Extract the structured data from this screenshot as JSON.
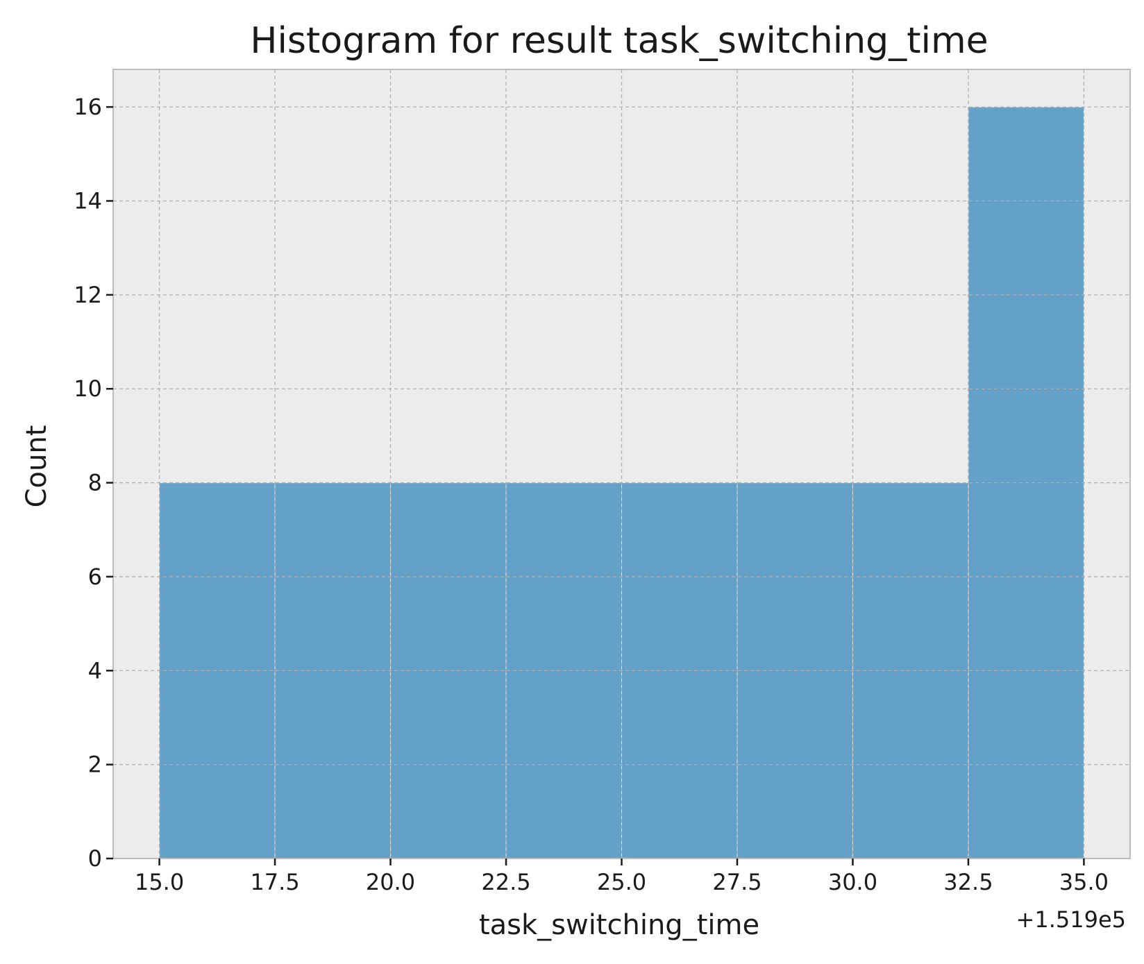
{
  "chart_data": {
    "type": "bar",
    "title": "Histogram for result task_switching_time",
    "xlabel": "task_switching_time",
    "ylabel": "Count",
    "x_offset_label": "+1.519e5",
    "bins": [
      {
        "start": 15.0,
        "end": 17.5,
        "count": 8
      },
      {
        "start": 17.5,
        "end": 20.0,
        "count": 8
      },
      {
        "start": 20.0,
        "end": 22.5,
        "count": 8
      },
      {
        "start": 22.5,
        "end": 25.0,
        "count": 8
      },
      {
        "start": 25.0,
        "end": 27.5,
        "count": 8
      },
      {
        "start": 27.5,
        "end": 30.0,
        "count": 8
      },
      {
        "start": 30.0,
        "end": 32.5,
        "count": 8
      },
      {
        "start": 32.5,
        "end": 35.0,
        "count": 16
      }
    ],
    "xticks": [
      "15.0",
      "17.5",
      "20.0",
      "22.5",
      "25.0",
      "27.5",
      "30.0",
      "32.5",
      "35.0"
    ],
    "yticks": [
      "0",
      "2",
      "4",
      "6",
      "8",
      "10",
      "12",
      "14",
      "16"
    ],
    "xlim": [
      14.0,
      36.0
    ],
    "ylim": [
      0,
      16.8
    ],
    "grid": true,
    "colors": {
      "bar": "#64a1c8",
      "bar_edge": "#e0e8ee",
      "background": "#ececec",
      "grid": "#b0b0b0",
      "frame": "#bcbcbc",
      "text": "#1a1a1a"
    }
  }
}
